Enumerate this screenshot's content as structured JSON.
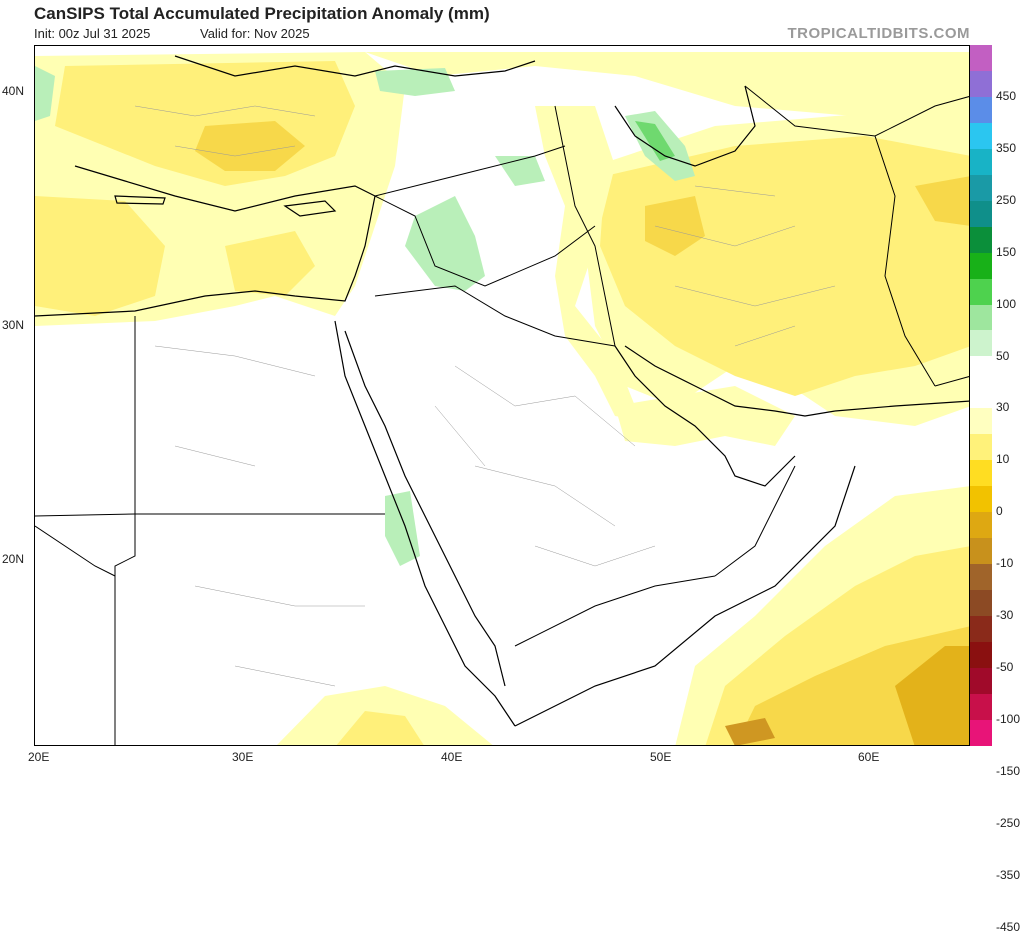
{
  "header": {
    "title": "CanSIPS Total Accumulated Precipitation Anomaly (mm)",
    "init": "Init: 00z Jul 31 2025",
    "valid": "Valid for: Nov 2025",
    "brand": "TROPICALTIDBITS.COM"
  },
  "axes": {
    "lat_labels": [
      "40N",
      "30N",
      "20N"
    ],
    "lon_labels": [
      "20E",
      "30E",
      "40E",
      "50E",
      "60E"
    ]
  },
  "colorbar": {
    "labels": [
      "450",
      "350",
      "250",
      "150",
      "100",
      "50",
      "30",
      "10",
      "0",
      "-10",
      "-30",
      "-50",
      "-100",
      "-150",
      "-250",
      "-350",
      "-450"
    ],
    "colors": [
      "#c25fc2",
      "#8f6fd6",
      "#5b8de8",
      "#2bc6f0",
      "#18b3c6",
      "#1a9aa6",
      "#0f8f8a",
      "#0b8f3a",
      "#18b118",
      "#4ed24e",
      "#9ee69e",
      "#cdf3cd",
      "#ffffff",
      "#ffffff",
      "#ffffc0",
      "#fff27a",
      "#ffdd22",
      "#f2c200",
      "#dea812",
      "#c8911c",
      "#a0642a",
      "#8c4a24",
      "#8a2a1a",
      "#8a1010",
      "#a00a2a",
      "#c8104a",
      "#e81478"
    ]
  },
  "colors": {
    "light_yellow": "#ffffb3",
    "yellow": "#fff07a",
    "orange": "#f7d84a",
    "dark_orange": "#e3b21a",
    "brown": "#cf9722",
    "light_green": "#b9efb9",
    "green": "#6fd96f"
  }
}
